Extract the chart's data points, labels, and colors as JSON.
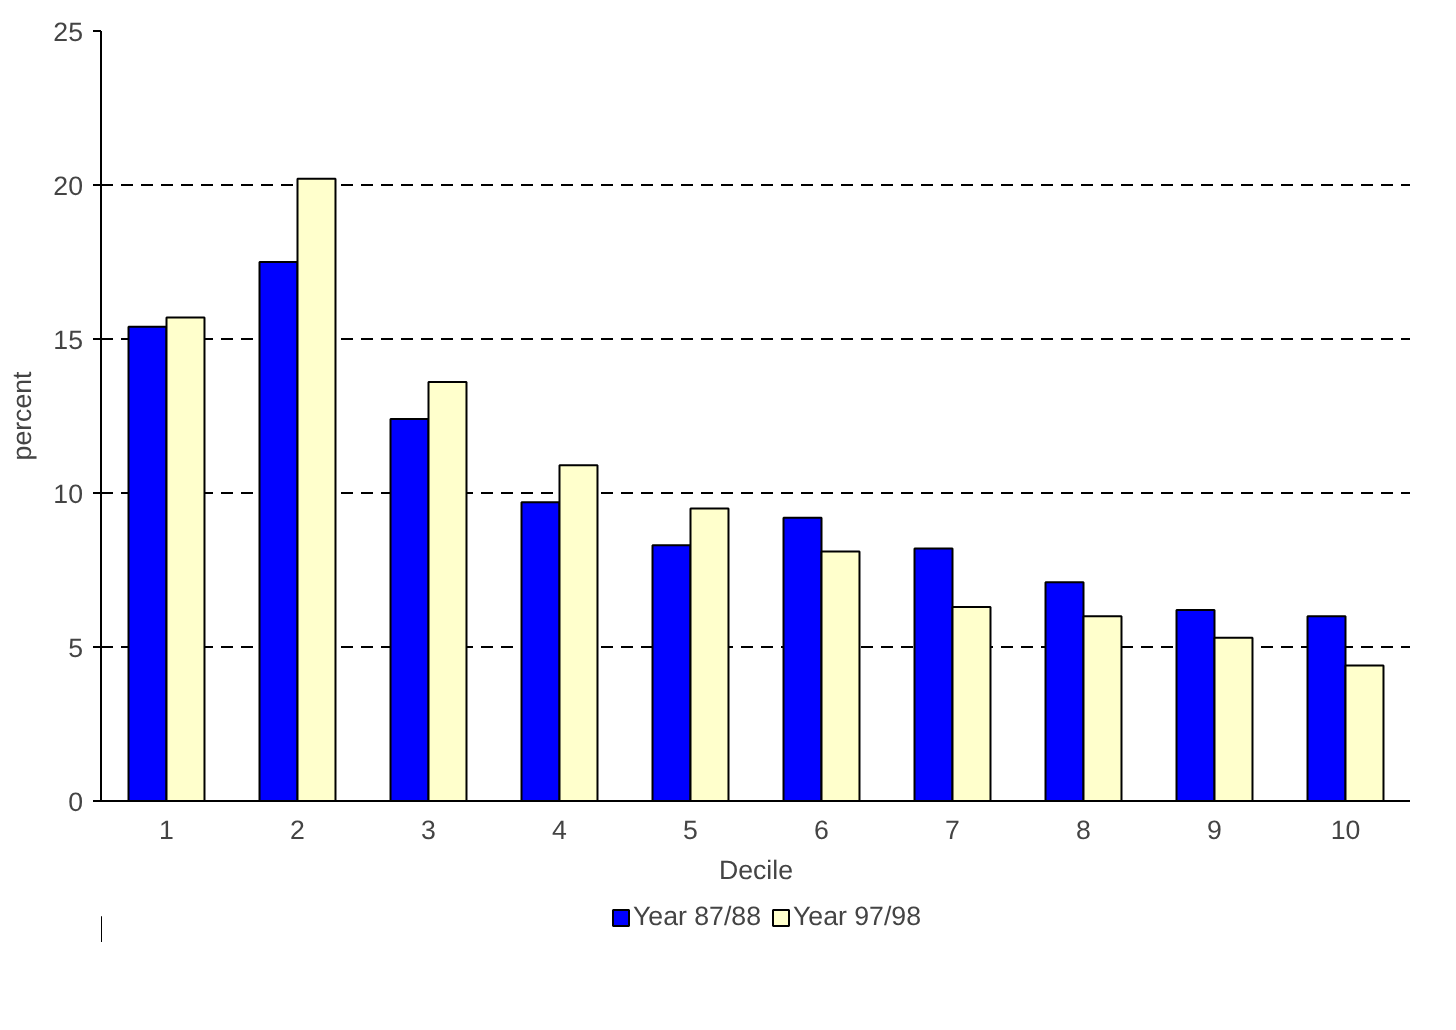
{
  "chart_data": {
    "type": "bar",
    "xlabel": "Decile",
    "ylabel": "percent",
    "categories": [
      "1",
      "2",
      "3",
      "4",
      "5",
      "6",
      "7",
      "8",
      "9",
      "10"
    ],
    "series": [
      {
        "name": "Year 87/88",
        "color": "#0000ff",
        "values": [
          15.4,
          17.5,
          12.4,
          9.7,
          8.3,
          9.2,
          8.2,
          7.1,
          6.2,
          6.0
        ]
      },
      {
        "name": "Year 97/98",
        "color": "#ffffcc",
        "values": [
          15.7,
          20.2,
          13.6,
          10.9,
          9.5,
          8.1,
          6.3,
          6.0,
          5.3,
          4.4
        ]
      }
    ],
    "ylim": [
      0,
      25
    ],
    "yticks": [
      0,
      5,
      10,
      15,
      20,
      25
    ],
    "grid": "y",
    "legend": "bottom"
  }
}
